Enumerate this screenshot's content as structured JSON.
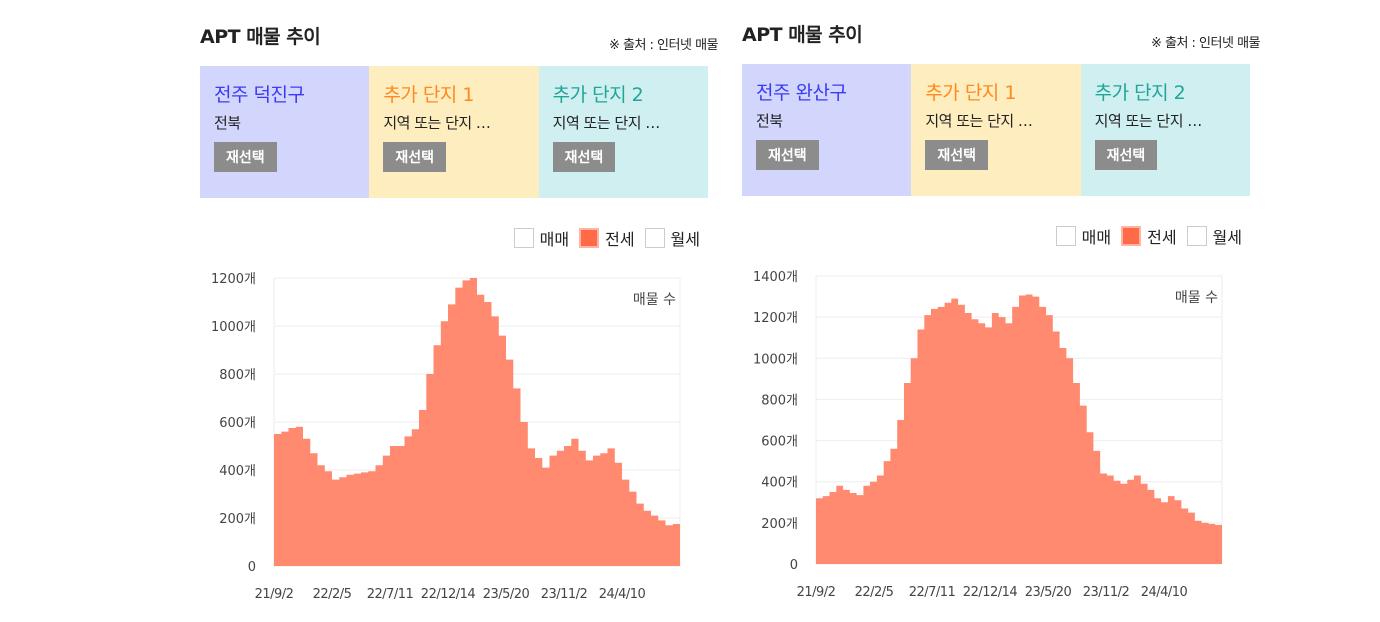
{
  "panels": [
    {
      "title": "APT 매물 추이",
      "source": "※ 출처 : 인터넷 매물",
      "cards": [
        {
          "name": "전주 덕진구",
          "sub": "전북",
          "button": "재선택",
          "bg": "#d2d6fd",
          "color": "#3b3bf5"
        },
        {
          "name": "추가 단지 1",
          "sub": "지역 또는 단지 …",
          "button": "재선택",
          "bg": "#fdedbf",
          "color": "#ff8a1e"
        },
        {
          "name": "추가 단지 2",
          "sub": "지역 또는 단지 …",
          "button": "재선택",
          "bg": "#cfeff0",
          "color": "#21a49a"
        }
      ],
      "legend": [
        {
          "label": "매매",
          "checked": false
        },
        {
          "label": "전세",
          "checked": true
        },
        {
          "label": "월세",
          "checked": false
        }
      ]
    },
    {
      "title": "APT 매물 추이",
      "source": "※ 출처 : 인터넷 매물",
      "cards": [
        {
          "name": "전주 완산구",
          "sub": "전북",
          "button": "재선택",
          "bg": "#d2d6fd",
          "color": "#3b3bf5"
        },
        {
          "name": "추가 단지 1",
          "sub": "지역 또는 단지 …",
          "button": "재선택",
          "bg": "#fdedbf",
          "color": "#ff8a1e"
        },
        {
          "name": "추가 단지 2",
          "sub": "지역 또는 단지 …",
          "button": "재선택",
          "bg": "#cfeff0",
          "color": "#21a49a"
        }
      ],
      "legend": [
        {
          "label": "매매",
          "checked": false
        },
        {
          "label": "전세",
          "checked": true
        },
        {
          "label": "월세",
          "checked": false
        }
      ]
    }
  ],
  "chart_data": [
    {
      "type": "area",
      "series_label": "매물 수",
      "color": "#ff8a70",
      "ylim": [
        0,
        1200
      ],
      "yticks": [
        "0",
        "200개",
        "400개",
        "600개",
        "800개",
        "1000개",
        "1200개"
      ],
      "xticks": [
        "21/9/2",
        "22/2/5",
        "22/7/11",
        "22/12/14",
        "23/5/20",
        "23/11/2",
        "24/4/10"
      ],
      "values": [
        550,
        560,
        575,
        580,
        530,
        470,
        420,
        395,
        360,
        370,
        380,
        385,
        390,
        395,
        420,
        460,
        500,
        500,
        540,
        570,
        650,
        800,
        920,
        1020,
        1090,
        1160,
        1190,
        1200,
        1130,
        1100,
        1040,
        960,
        860,
        740,
        600,
        490,
        450,
        410,
        460,
        480,
        500,
        530,
        480,
        440,
        460,
        470,
        490,
        430,
        360,
        310,
        260,
        230,
        210,
        190,
        170,
        175
      ],
      "grid": true
    },
    {
      "type": "area",
      "series_label": "매물 수",
      "color": "#ff8a70",
      "ylim": [
        0,
        1400
      ],
      "yticks": [
        "0",
        "200개",
        "400개",
        "600개",
        "800개",
        "1000개",
        "1200개",
        "1400개"
      ],
      "xticks": [
        "21/9/2",
        "22/2/5",
        "22/7/11",
        "22/12/14",
        "23/5/20",
        "23/11/2",
        "24/4/10"
      ],
      "values": [
        320,
        330,
        350,
        380,
        360,
        345,
        335,
        380,
        400,
        430,
        500,
        560,
        700,
        880,
        1000,
        1140,
        1210,
        1240,
        1250,
        1270,
        1290,
        1260,
        1220,
        1190,
        1170,
        1150,
        1220,
        1200,
        1170,
        1250,
        1305,
        1310,
        1300,
        1250,
        1210,
        1130,
        1050,
        1000,
        880,
        770,
        640,
        550,
        440,
        430,
        405,
        390,
        410,
        430,
        390,
        360,
        320,
        300,
        330,
        310,
        270,
        250,
        210,
        200,
        195,
        190
      ],
      "grid": true
    }
  ]
}
